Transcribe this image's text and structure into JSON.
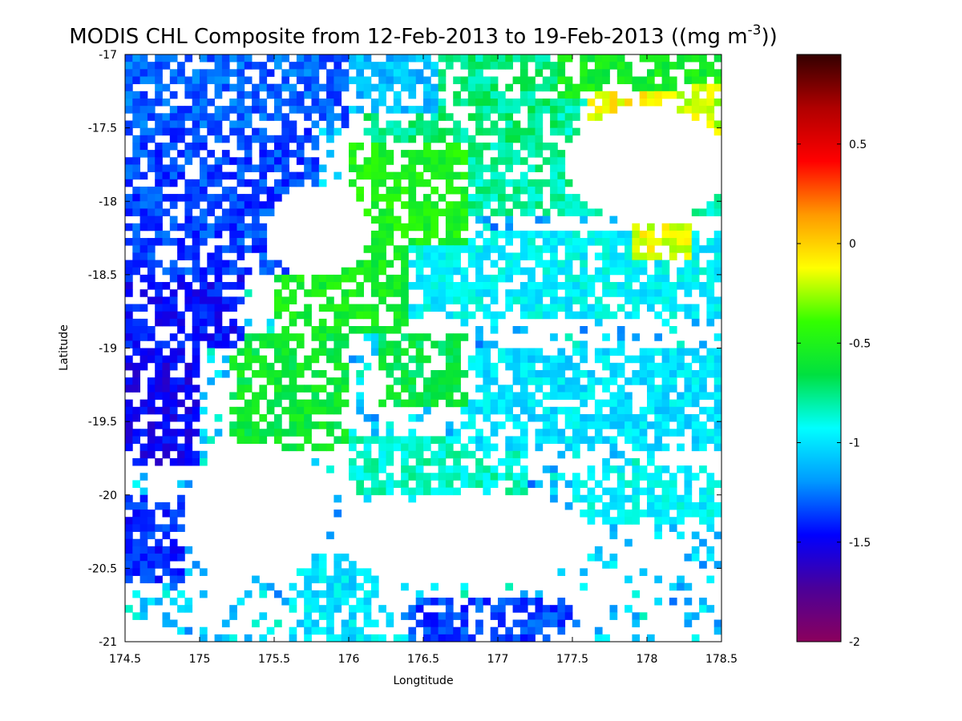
{
  "chart_data": {
    "type": "heatmap",
    "title": "MODIS CHL Composite from 12-Feb-2013 to 19-Feb-2013 ((mg m",
    "title_sup": "-3",
    "title_end": "))",
    "xlabel": "Longtitude",
    "ylabel": "Latitude",
    "xlim": [
      174.5,
      178.5
    ],
    "ylim": [
      -21,
      -17
    ],
    "x_ticks": [
      "174.5",
      "175",
      "175.5",
      "176",
      "176.5",
      "177",
      "177.5",
      "178",
      "178.5"
    ],
    "y_ticks": [
      "-17",
      "-17.5",
      "-18",
      "-18.5",
      "-19",
      "-19.5",
      "-20",
      "-20.5",
      "-21"
    ],
    "colorbar": {
      "range": [
        -2,
        0.95
      ],
      "ticks": [
        "0.5",
        "0",
        "-0.5",
        "-1",
        "-1.5",
        "-2"
      ],
      "tick_values": [
        0.5,
        0,
        -0.5,
        -1,
        -1.5,
        -2
      ],
      "colormap": [
        "#8b005c",
        "#4b0099",
        "#0000ff",
        "#0099ff",
        "#00ffff",
        "#00e040",
        "#33ff00",
        "#ffff00",
        "#ff9900",
        "#ff0000",
        "#b00000",
        "#330000"
      ]
    },
    "grid": false,
    "cell_size_deg": 0.05,
    "regions": [
      {
        "lon": [
          174.5,
          176.0
        ],
        "lat": [
          -17.0,
          -17.5
        ],
        "value": -1.3
      },
      {
        "lon": [
          174.5,
          175.8
        ],
        "lat": [
          -17.5,
          -18.5
        ],
        "value": -1.35
      },
      {
        "lon": [
          174.5,
          175.3
        ],
        "lat": [
          -18.5,
          -19.0
        ],
        "value": -1.45
      },
      {
        "lon": [
          174.5,
          175.0
        ],
        "lat": [
          -19.0,
          -19.8
        ],
        "value": -1.5
      },
      {
        "lon": [
          174.5,
          174.9
        ],
        "lat": [
          -20.0,
          -20.6
        ],
        "value": -1.4
      },
      {
        "lon": [
          175.8,
          176.6
        ],
        "lat": [
          -17.0,
          -17.4
        ],
        "value": -1.1
      },
      {
        "lon": [
          176.1,
          177.4
        ],
        "lat": [
          -17.0,
          -17.6
        ],
        "value": -0.75
      },
      {
        "lon": [
          177.3,
          178.5
        ],
        "lat": [
          -17.0,
          -17.3
        ],
        "value": -0.55
      },
      {
        "lon": [
          176.8,
          178.5
        ],
        "lat": [
          -17.2,
          -18.1
        ],
        "value": -0.8
      },
      {
        "lon": [
          176.0,
          176.8
        ],
        "lat": [
          -17.6,
          -18.3
        ],
        "value": -0.5
      },
      {
        "lon": [
          175.5,
          176.4
        ],
        "lat": [
          -18.2,
          -18.9
        ],
        "value": -0.55
      },
      {
        "lon": [
          176.4,
          178.5
        ],
        "lat": [
          -18.2,
          -18.8
        ],
        "value": -0.95
      },
      {
        "lon": [
          175.2,
          176.0
        ],
        "lat": [
          -18.9,
          -19.7
        ],
        "value": -0.6
      },
      {
        "lon": [
          176.2,
          176.8
        ],
        "lat": [
          -18.9,
          -19.4
        ],
        "value": -0.65
      },
      {
        "lon": [
          176.8,
          178.5
        ],
        "lat": [
          -19.0,
          -19.7
        ],
        "value": -1.0
      },
      {
        "lon": [
          176.0,
          177.2
        ],
        "lat": [
          -19.6,
          -20.0
        ],
        "value": -0.85
      },
      {
        "lon": [
          177.5,
          178.5
        ],
        "lat": [
          -19.8,
          -20.2
        ],
        "value": -0.95
      },
      {
        "lon": [
          175.6,
          176.2
        ],
        "lat": [
          -20.4,
          -21.0
        ],
        "value": -1.0
      },
      {
        "lon": [
          176.4,
          177.5
        ],
        "lat": [
          -20.7,
          -21.0
        ],
        "value": -1.35
      }
    ],
    "blank_regions": [
      {
        "center": [
          178.0,
          -17.75
        ],
        "radius": [
          0.55,
          0.4
        ]
      },
      {
        "center": [
          175.8,
          -18.2
        ],
        "radius": [
          0.35,
          0.3
        ]
      },
      {
        "center": [
          175.4,
          -20.1
        ],
        "radius": [
          0.5,
          0.45
        ]
      },
      {
        "center": [
          176.8,
          -20.3
        ],
        "radius": [
          0.9,
          0.3
        ]
      }
    ],
    "hotspots": [
      {
        "lon": [
          177.6,
          178.2
        ],
        "lat": [
          -17.25,
          -17.45
        ],
        "value": -0.1
      },
      {
        "lon": [
          177.9,
          178.3
        ],
        "lat": [
          -18.15,
          -18.4
        ],
        "value": -0.15
      },
      {
        "lon": [
          178.2,
          178.5
        ],
        "lat": [
          -17.2,
          -17.55
        ],
        "value": -0.2
      }
    ]
  }
}
